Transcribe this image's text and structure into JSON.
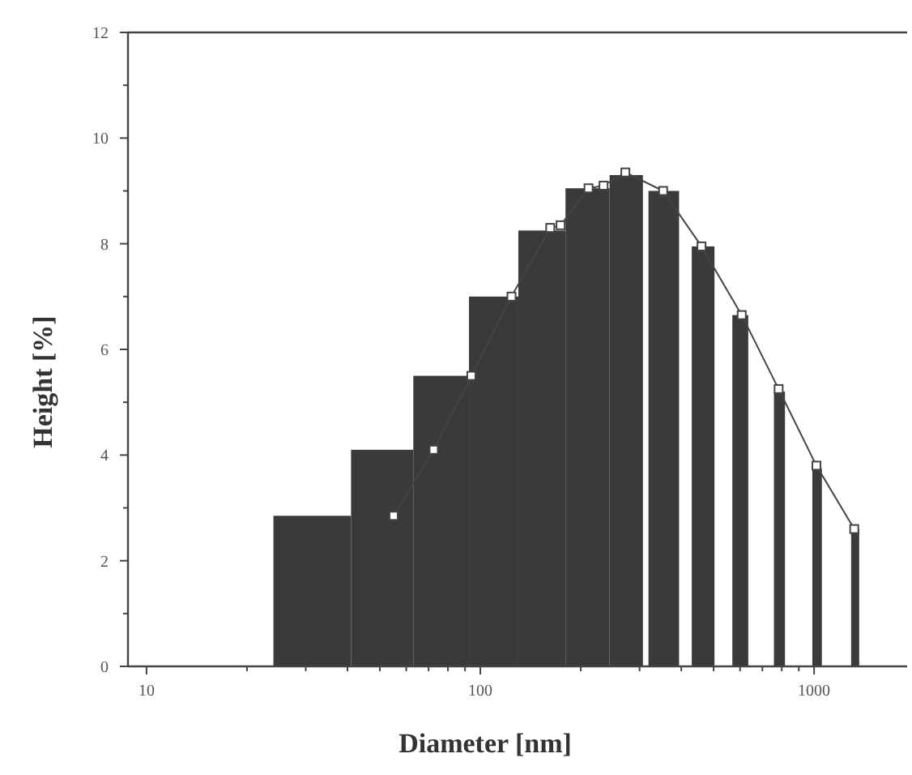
{
  "chart_data": {
    "type": "histogram",
    "xlabel": "Diameter [nm]",
    "ylabel": "Height [%]",
    "log": "x",
    "grid": false,
    "xlim": [
      8.8,
      1900
    ],
    "xticks": [
      10,
      {
        "value": 20,
        "label": null
      },
      {
        "value": 30,
        "label": null
      },
      {
        "value": 40,
        "label": null
      },
      {
        "value": 50,
        "label": null
      },
      {
        "value": 60,
        "label": null
      },
      {
        "value": 70,
        "label": null
      },
      {
        "value": 80,
        "label": null
      },
      {
        "value": 90,
        "label": null
      },
      100,
      {
        "value": 200,
        "label": null
      },
      {
        "value": 300,
        "label": null
      },
      {
        "value": 400,
        "label": null
      },
      {
        "value": 500,
        "label": null
      },
      {
        "value": 600,
        "label": null
      },
      {
        "value": 700,
        "label": null
      },
      {
        "value": 800,
        "label": null
      },
      {
        "value": 900,
        "label": null
      },
      1000
    ],
    "ylim": [
      0,
      12
    ],
    "yticks": [
      0,
      {
        "value": 1,
        "label": null
      },
      2,
      {
        "value": 3,
        "label": null
      },
      4,
      {
        "value": 5,
        "label": null
      },
      6,
      {
        "value": 7,
        "label": null
      },
      8,
      {
        "value": 9,
        "label": null
      },
      10,
      {
        "value": 11,
        "label": null
      },
      12
    ],
    "series": [
      {
        "color": "#3a3a3a",
        "bins": [
          24,
          41,
          63,
          92.5,
          130,
          180,
          244,
          307,
          319,
          394,
          430,
          503,
          569,
          635,
          758,
          818,
          988,
          1055,
          1291,
          1365
        ],
        "values": [
          2.85,
          4.1,
          5.5,
          7.0,
          8.25,
          9.05,
          9.3,
          0,
          9.0,
          0,
          7.95,
          0,
          6.65,
          0,
          5.2,
          0,
          3.75,
          0,
          2.6
        ]
      },
      {
        "type": "line",
        "color": "#444444",
        "marker": "square",
        "x": [
          55,
          72.5,
          94,
          124,
          162,
          174,
          211,
          234,
          272,
          353,
          460,
          607,
          783,
          1016,
          1319
        ],
        "values": [
          2.85,
          4.1,
          5.5,
          7.0,
          8.3,
          8.35,
          9.05,
          9.1,
          9.35,
          9.0,
          7.95,
          6.65,
          5.25,
          3.8,
          2.6
        ]
      }
    ]
  }
}
